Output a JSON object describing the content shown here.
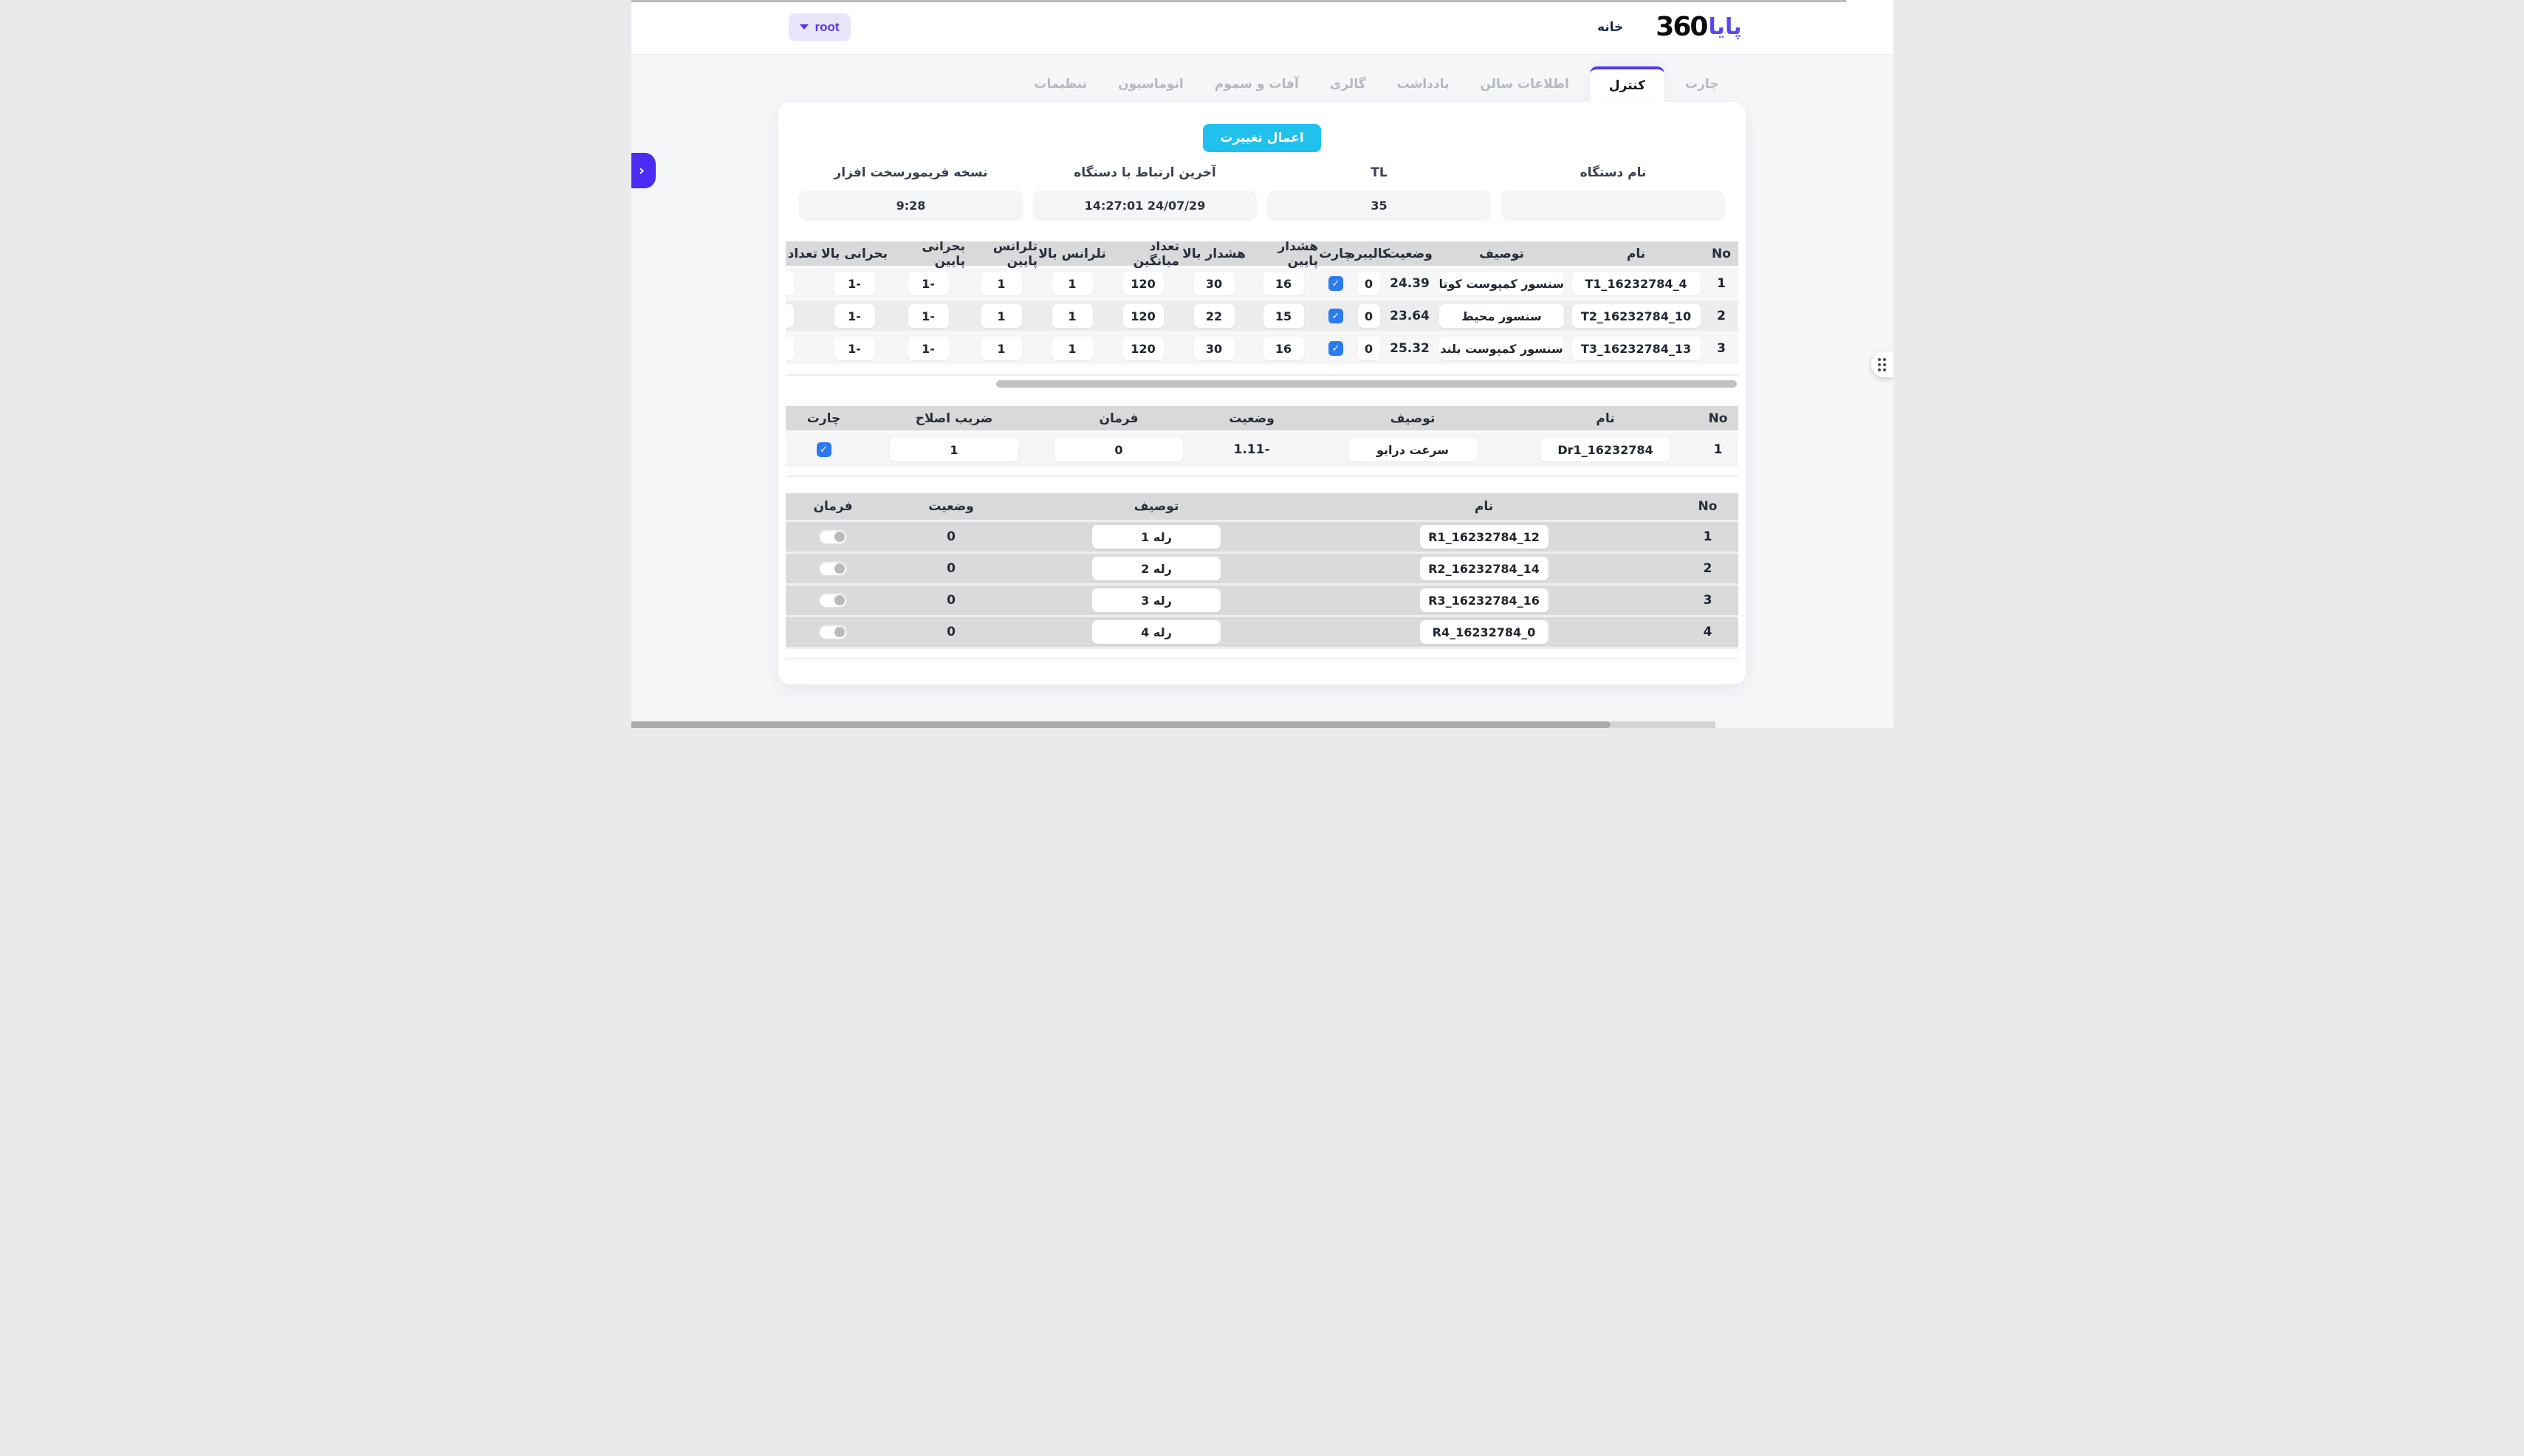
{
  "header": {
    "brand_persian": "پایا",
    "brand_number": "360",
    "home_link": "خانه",
    "account_button": {
      "label": "root"
    }
  },
  "tabs": [
    {
      "label": "چارت",
      "active": false
    },
    {
      "label": "کنترل",
      "active": true
    },
    {
      "label": "اطلاعات سالن",
      "active": false
    },
    {
      "label": "یادداشت",
      "active": false
    },
    {
      "label": "گالری",
      "active": false
    },
    {
      "label": "آفات و سموم",
      "active": false
    },
    {
      "label": "اتوماسیون",
      "active": false
    },
    {
      "label": "تنظیمات",
      "active": false
    }
  ],
  "panel": {
    "apply_button": "اعمال تغییرت",
    "device_fields": [
      {
        "label": "نام دستگاه",
        "value": ""
      },
      {
        "label": "TL",
        "value": "35"
      },
      {
        "label": "آخرین ارتباط با دستگاه",
        "value": "14:27:01 24/07/29"
      },
      {
        "label": "نسخه فریمورسخت افزار",
        "value": "9:28"
      }
    ],
    "sensors_table": {
      "headers": [
        "No",
        "نام",
        "توصیف",
        "وضعیت",
        "کالیبره",
        "چارت",
        "هشدار پایین",
        "هشدار بالا",
        "تعداد میانگین",
        "تلرانس بالا",
        "تلرانس پایین",
        "بحرانی پایین",
        "بحرانی بالا",
        "تعداد"
      ],
      "rows": [
        {
          "no": "1",
          "name": "T1_16232784_4",
          "desc": "سنسور کمپوست کوتاه",
          "status": "24.39",
          "cal": "0",
          "chart_checked": true,
          "alarm_low": "16",
          "alarm_high": "30",
          "avg_count": "120",
          "tol_high": "1",
          "tol_low": "1",
          "crit_low": "-1",
          "crit_high": "-1",
          "extra": ""
        },
        {
          "no": "2",
          "name": "T2_16232784_10",
          "desc": "سنسور محیط",
          "status": "23.64",
          "cal": "0",
          "chart_checked": true,
          "alarm_low": "15",
          "alarm_high": "22",
          "avg_count": "120",
          "tol_high": "1",
          "tol_low": "1",
          "crit_low": "-1",
          "crit_high": "-1",
          "extra": ""
        },
        {
          "no": "3",
          "name": "T3_16232784_13",
          "desc": "سنسور کمپوست بلند",
          "status": "25.32",
          "cal": "0",
          "chart_checked": true,
          "alarm_low": "16",
          "alarm_high": "30",
          "avg_count": "120",
          "tol_high": "1",
          "tol_low": "1",
          "crit_low": "-1",
          "crit_high": "-1",
          "extra": ""
        }
      ]
    },
    "drives_table": {
      "headers": [
        "No",
        "نام",
        "توصیف",
        "وضعیت",
        "فرمان",
        "ضریب اصلاح",
        "چارت"
      ],
      "rows": [
        {
          "no": "1",
          "name": "Dr1_16232784",
          "desc": "سرعت درایو",
          "status": "-1.11",
          "command": "0",
          "correction": "1",
          "chart_checked": true
        }
      ]
    },
    "relays_table": {
      "headers": [
        "No",
        "نام",
        "توصیف",
        "وضعیت",
        "فرمان"
      ],
      "rows": [
        {
          "no": "1",
          "name": "R1_16232784_12",
          "desc": "رله 1",
          "status": "0",
          "command_on": false
        },
        {
          "no": "2",
          "name": "R2_16232784_14",
          "desc": "رله 2",
          "status": "0",
          "command_on": false
        },
        {
          "no": "3",
          "name": "R3_16232784_16",
          "desc": "رله 3",
          "status": "0",
          "command_on": false
        },
        {
          "no": "4",
          "name": "R4_16232784_0",
          "desc": "رله 4",
          "status": "0",
          "command_on": false
        }
      ]
    }
  },
  "icons": {
    "account_caret": "caret-down",
    "sidebar_expander": "chevron-right",
    "drag_handle": "six-dots-grid",
    "chart_checkbox": "checkmark"
  },
  "colors": {
    "accent_purple": "#5436f2",
    "accent_cyan": "#21c1ee",
    "checkbox_blue": "#2b7af0",
    "table_header_gray": "#d9d9da",
    "brand_purple": "#5848f0"
  }
}
